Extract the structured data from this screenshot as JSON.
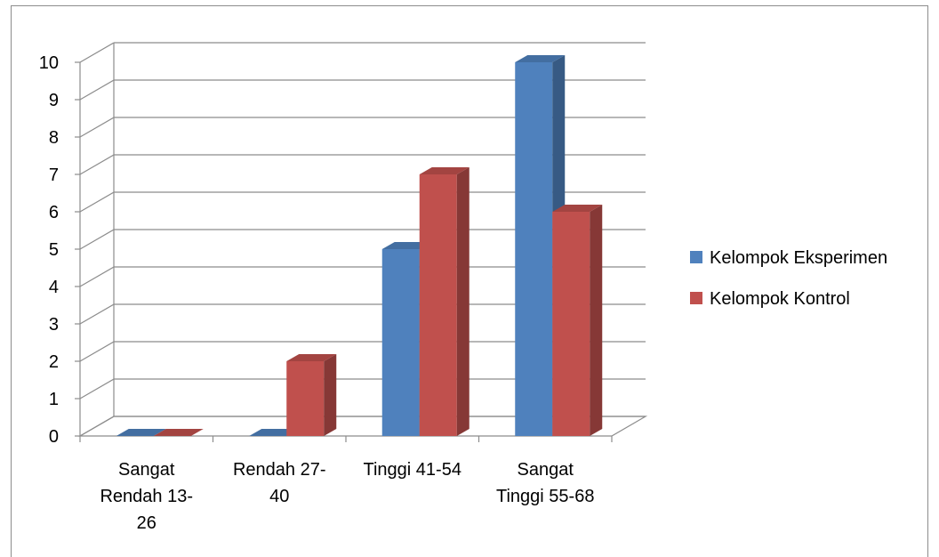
{
  "chart_data": {
    "type": "bar",
    "style": "3d-clustered-column",
    "categories": [
      [
        "Sangat",
        "Rendah 13-",
        "26"
      ],
      [
        "Rendah 27-",
        "40"
      ],
      [
        "Tinggi 41-54"
      ],
      [
        "Sangat",
        "Tinggi 55-68"
      ]
    ],
    "series": [
      {
        "name": "Kelompok Eksperimen",
        "values": [
          0,
          0,
          5,
          10
        ],
        "color": "#4f81bd"
      },
      {
        "name": "Kelompok Kontrol",
        "values": [
          0,
          2,
          7,
          6
        ],
        "color": "#c0504d"
      }
    ],
    "ylim": [
      0,
      10
    ],
    "yticks": [
      0,
      1,
      2,
      3,
      4,
      5,
      6,
      7,
      8,
      9,
      10
    ],
    "grid": true,
    "legend": "right",
    "title": "",
    "xlabel": "",
    "ylabel": ""
  }
}
